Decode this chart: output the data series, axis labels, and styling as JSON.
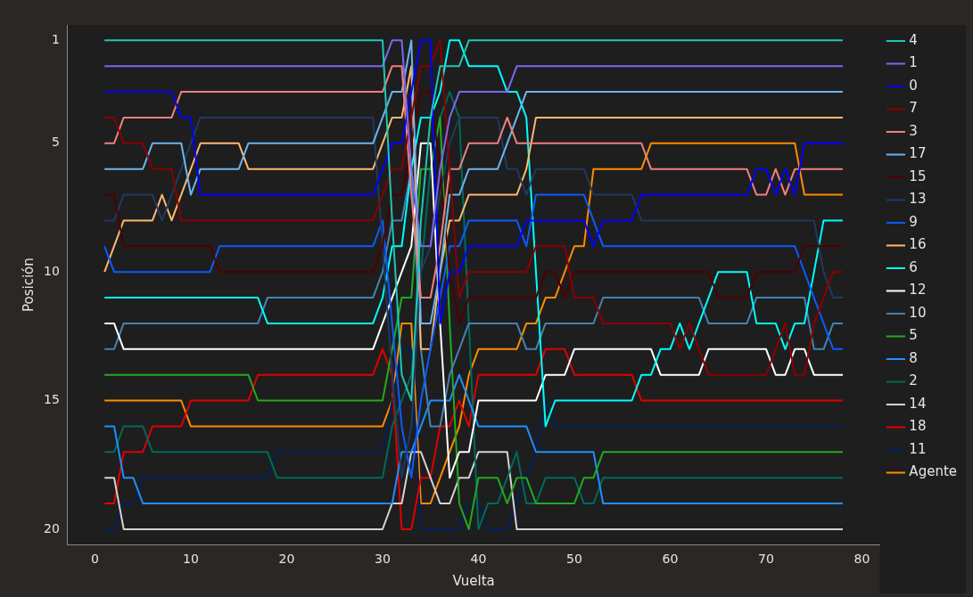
{
  "chart_data": {
    "type": "line",
    "xlabel": "Vuelta",
    "ylabel": "Posición",
    "xlim": [
      -2.85,
      81.85
    ],
    "xticks": [
      0,
      10,
      20,
      30,
      40,
      50,
      60,
      70,
      80
    ],
    "ylim": [
      20.6,
      0.4
    ],
    "yticks": [
      1,
      5,
      10,
      15,
      20
    ],
    "legend": "right",
    "marker": "none",
    "line_style": "solid",
    "series": [
      {
        "name": "4",
        "color": "#20c5b5",
        "x": [
          1,
          30,
          31,
          32,
          33,
          34,
          35,
          36,
          37,
          38,
          39,
          78
        ],
        "values": [
          1,
          1,
          8,
          14,
          15,
          8,
          4,
          2,
          2,
          2,
          1,
          1
        ]
      },
      {
        "name": "1",
        "color": "#7b68ee",
        "x": [
          1,
          30,
          31,
          32,
          33,
          34,
          35,
          36,
          37,
          38,
          43,
          44,
          78
        ],
        "values": [
          2,
          2,
          1,
          1,
          6,
          9,
          9,
          6,
          4,
          3,
          3,
          2,
          2
        ]
      },
      {
        "name": "0",
        "color": "#0000ff",
        "x": [
          1,
          8,
          9,
          10,
          11,
          29,
          30,
          31,
          32,
          33,
          34,
          35,
          36,
          37,
          38,
          39,
          44,
          45,
          51,
          52,
          53,
          56,
          57,
          68,
          69,
          70,
          71,
          72,
          73,
          74,
          78
        ],
        "values": [
          3,
          3,
          4,
          4,
          7,
          7,
          6,
          5,
          5,
          3,
          1,
          1,
          12,
          10,
          10,
          9,
          9,
          8,
          8,
          9,
          8,
          8,
          7,
          7,
          6,
          6,
          7,
          6,
          7,
          5,
          5
        ]
      },
      {
        "name": "7",
        "color": "#8b0000",
        "x": [
          1,
          2,
          3,
          5,
          6,
          8,
          9,
          29,
          30,
          31,
          32,
          33,
          34,
          35,
          36,
          37,
          38,
          39,
          45,
          46,
          49,
          50,
          52,
          53,
          60,
          61,
          62,
          63,
          64,
          70,
          71,
          72,
          73,
          74,
          75,
          76,
          77,
          78
        ],
        "values": [
          4,
          4,
          5,
          5,
          6,
          6,
          8,
          8,
          7,
          6,
          6,
          4,
          2,
          2,
          1,
          6,
          11,
          10,
          10,
          9,
          9,
          11,
          11,
          12,
          12,
          13,
          12,
          13,
          14,
          14,
          13,
          12,
          14,
          14,
          12,
          11,
          10,
          10
        ]
      },
      {
        "name": "3",
        "color": "#f08080",
        "x": [
          1,
          2,
          3,
          8,
          9,
          30,
          31,
          32,
          33,
          34,
          35,
          36,
          37,
          38,
          39,
          42,
          43,
          44,
          57,
          58,
          68,
          69,
          70,
          71,
          72,
          73,
          78
        ],
        "values": [
          5,
          5,
          4,
          4,
          3,
          3,
          2,
          2,
          7,
          11,
          11,
          9,
          6,
          6,
          5,
          5,
          4,
          5,
          5,
          6,
          6,
          7,
          7,
          6,
          7,
          6,
          6
        ]
      },
      {
        "name": "17",
        "color": "#6cb4ee",
        "x": [
          1,
          5,
          6,
          9,
          10,
          11,
          15,
          16,
          29,
          30,
          31,
          32,
          33,
          34,
          35,
          36,
          37,
          38,
          39,
          42,
          43,
          44,
          45,
          78
        ],
        "values": [
          6,
          6,
          5,
          5,
          7,
          6,
          6,
          5,
          5,
          4,
          3,
          3,
          1,
          12,
          12,
          10,
          7,
          7,
          6,
          6,
          5,
          4,
          3,
          3
        ]
      },
      {
        "name": "15",
        "color": "#500000",
        "x": [
          1,
          2,
          3,
          12,
          13,
          29,
          30,
          31,
          32,
          33,
          34,
          35,
          36,
          37,
          38,
          39,
          46,
          47,
          48,
          49,
          50,
          64,
          65,
          68,
          69,
          73,
          74,
          78
        ],
        "values": [
          7,
          7,
          9,
          9,
          10,
          10,
          9,
          7,
          7,
          5,
          3,
          3,
          6,
          10,
          12,
          11,
          11,
          10,
          10,
          11,
          10,
          10,
          11,
          11,
          10,
          10,
          9,
          9
        ]
      },
      {
        "name": "13",
        "color": "#1f3a5f",
        "x": [
          1,
          2,
          3,
          6,
          7,
          11,
          29,
          30,
          31,
          32,
          33,
          34,
          35,
          36,
          37,
          38,
          42,
          43,
          44,
          45,
          46,
          51,
          52,
          56,
          57,
          75,
          76,
          77,
          78
        ],
        "values": [
          8,
          8,
          7,
          7,
          8,
          4,
          4,
          9,
          14,
          18,
          16,
          10,
          9,
          7,
          5,
          4,
          4,
          6,
          6,
          7,
          6,
          6,
          7,
          7,
          8,
          8,
          10,
          11,
          11
        ]
      },
      {
        "name": "9",
        "color": "#0a5cff",
        "x": [
          1,
          2,
          12,
          13,
          29,
          30,
          31,
          32,
          33,
          34,
          35,
          36,
          37,
          38,
          39,
          44,
          45,
          46,
          51,
          52,
          53,
          73,
          74,
          75,
          76,
          77,
          78
        ],
        "values": [
          9,
          10,
          10,
          9,
          9,
          8,
          12,
          16,
          18,
          15,
          13,
          11,
          9,
          9,
          8,
          8,
          9,
          7,
          7,
          8,
          9,
          9,
          10,
          11,
          12,
          13,
          13
        ]
      },
      {
        "name": "16",
        "color": "#ffb870",
        "x": [
          1,
          3,
          6,
          7,
          8,
          11,
          15,
          16,
          29,
          30,
          31,
          32,
          33,
          34,
          35,
          36,
          37,
          38,
          39,
          44,
          45,
          46,
          78
        ],
        "values": [
          10,
          8,
          8,
          7,
          8,
          5,
          5,
          6,
          6,
          5,
          4,
          4,
          2,
          13,
          13,
          10,
          8,
          8,
          7,
          7,
          6,
          4,
          4
        ]
      },
      {
        "name": "6",
        "color": "#00ffff",
        "x": [
          1,
          17,
          18,
          29,
          30,
          31,
          32,
          33,
          34,
          35,
          36,
          37,
          38,
          39,
          42,
          43,
          44,
          45,
          47,
          48,
          56,
          57,
          58,
          59,
          60,
          61,
          62,
          63,
          64,
          65,
          68,
          69,
          71,
          72,
          73,
          74,
          75,
          76,
          78
        ],
        "values": [
          11,
          11,
          12,
          12,
          11,
          9,
          9,
          6,
          4,
          4,
          3,
          1,
          1,
          2,
          2,
          3,
          3,
          4,
          16,
          15,
          15,
          14,
          14,
          13,
          13,
          12,
          13,
          12,
          11,
          10,
          10,
          12,
          12,
          13,
          12,
          12,
          10,
          8,
          8
        ]
      },
      {
        "name": "12",
        "color": "#ffffff",
        "x": [
          1,
          2,
          3,
          29,
          30,
          31,
          32,
          33,
          34,
          35,
          36,
          37,
          38,
          39,
          40,
          46,
          47,
          49,
          50,
          58,
          59,
          63,
          64,
          70,
          71,
          72,
          73,
          74,
          75,
          78
        ],
        "values": [
          12,
          12,
          13,
          13,
          12,
          11,
          10,
          9,
          5,
          5,
          12,
          18,
          17,
          17,
          15,
          15,
          14,
          14,
          13,
          13,
          14,
          14,
          13,
          13,
          14,
          14,
          13,
          13,
          14,
          14
        ]
      },
      {
        "name": "10",
        "color": "#4682b4",
        "x": [
          1,
          2,
          3,
          17,
          18,
          29,
          30,
          31,
          32,
          33,
          34,
          35,
          36,
          37,
          38,
          39,
          44,
          45,
          46,
          47,
          52,
          53,
          63,
          64,
          68,
          69,
          74,
          75,
          76,
          77,
          78
        ],
        "values": [
          13,
          13,
          12,
          12,
          11,
          11,
          10,
          8,
          8,
          6,
          13,
          16,
          16,
          14,
          13,
          12,
          12,
          13,
          13,
          12,
          12,
          11,
          11,
          12,
          12,
          11,
          11,
          13,
          13,
          12,
          12
        ]
      },
      {
        "name": "5",
        "color": "#22aa22",
        "x": [
          1,
          16,
          17,
          29,
          30,
          31,
          32,
          33,
          34,
          35,
          36,
          37,
          38,
          39,
          40,
          42,
          43,
          44,
          45,
          46,
          50,
          51,
          52,
          53,
          78
        ],
        "values": [
          14,
          14,
          15,
          15,
          15,
          13,
          11,
          11,
          6,
          6,
          4,
          12,
          19,
          20,
          18,
          18,
          19,
          18,
          18,
          19,
          19,
          18,
          18,
          17,
          17
        ]
      },
      {
        "name": "8",
        "color": "#1e90ff",
        "x": [
          1,
          2,
          3,
          4,
          5,
          31,
          32,
          33,
          34,
          35,
          37,
          38,
          39,
          40,
          45,
          46,
          52,
          53,
          78
        ],
        "values": [
          16,
          16,
          18,
          18,
          19,
          19,
          17,
          17,
          16,
          15,
          15,
          14,
          15,
          16,
          16,
          17,
          17,
          19,
          19
        ]
      },
      {
        "name": "2",
        "color": "#006a5b",
        "x": [
          1,
          2,
          3,
          5,
          6,
          18,
          19,
          30,
          31,
          32,
          33,
          34,
          35,
          36,
          37,
          38,
          39,
          40,
          41,
          42,
          43,
          44,
          45,
          46,
          47,
          50,
          51,
          52,
          53,
          78
        ],
        "values": [
          17,
          17,
          16,
          16,
          17,
          17,
          18,
          18,
          16,
          15,
          14,
          10,
          6,
          4,
          3,
          4,
          12,
          20,
          19,
          19,
          18,
          17,
          19,
          19,
          18,
          18,
          19,
          19,
          18,
          18
        ]
      },
      {
        "name": "14",
        "color": "#d3d3d3",
        "x": [
          1,
          2,
          3,
          30,
          31,
          32,
          33,
          34,
          35,
          36,
          37,
          38,
          39,
          40,
          43,
          44,
          78
        ],
        "values": [
          18,
          18,
          20,
          20,
          19,
          19,
          17,
          17,
          18,
          19,
          19,
          18,
          18,
          17,
          17,
          20,
          20
        ]
      },
      {
        "name": "18",
        "color": "#e00000",
        "x": [
          1,
          2,
          3,
          5,
          6,
          9,
          10,
          16,
          17,
          29,
          30,
          31,
          32,
          33,
          34,
          35,
          36,
          37,
          38,
          39,
          40,
          46,
          47,
          49,
          50,
          56,
          57,
          78
        ],
        "values": [
          19,
          19,
          17,
          17,
          16,
          16,
          15,
          15,
          14,
          14,
          13,
          14,
          20,
          20,
          18,
          18,
          16,
          16,
          15,
          16,
          14,
          14,
          13,
          13,
          14,
          14,
          15,
          15
        ]
      },
      {
        "name": "11",
        "color": "#00205b",
        "x": [
          1,
          2,
          3,
          4,
          5,
          18,
          19,
          30,
          31,
          32,
          33,
          34,
          38,
          39,
          40,
          41,
          43,
          44,
          45,
          46,
          47,
          48,
          78
        ],
        "values": [
          20,
          20,
          19,
          19,
          18,
          18,
          17,
          17,
          15,
          13,
          13,
          20,
          20,
          19,
          19,
          20,
          20,
          19,
          18,
          17,
          15,
          16,
          16
        ]
      },
      {
        "name": "Agente",
        "color": "#ff8c00",
        "x": [
          1,
          9,
          10,
          30,
          31,
          32,
          33,
          34,
          35,
          36,
          37,
          38,
          39,
          40,
          44,
          45,
          46,
          47,
          48,
          49,
          50,
          51,
          52,
          57,
          58,
          73,
          74,
          78
        ],
        "values": [
          15,
          15,
          16,
          16,
          15,
          12,
          12,
          19,
          19,
          18,
          17,
          16,
          14,
          13,
          13,
          12,
          12,
          11,
          11,
          10,
          9,
          9,
          6,
          6,
          5,
          5,
          7,
          7
        ]
      }
    ]
  }
}
